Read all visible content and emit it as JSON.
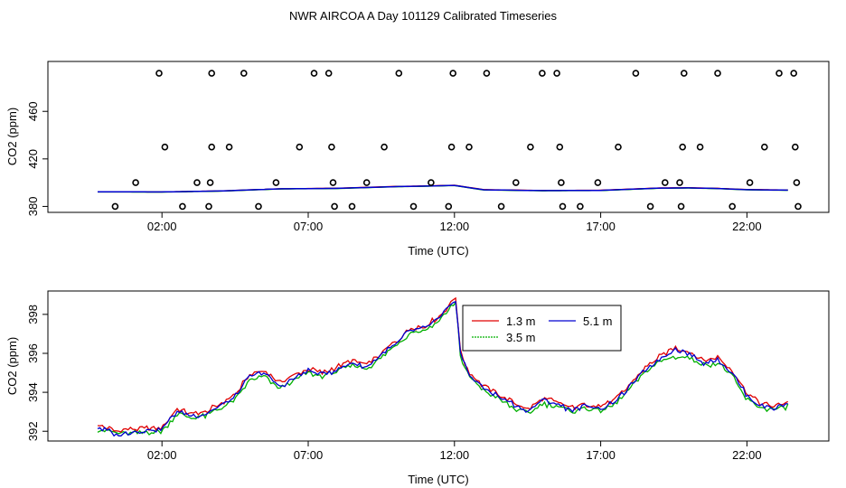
{
  "title": "NWR AIRCOA A  Day 101129  Calibrated Timeseries",
  "colors": {
    "r13": "#e00000",
    "r35": "#00b000",
    "r51": "#0000d0"
  },
  "chart_data": [
    {
      "type": "scatter+line",
      "panel": "top",
      "xlabel": "Time (UTC)",
      "ylabel": "CO2 (ppm)",
      "xlim": [
        -1.9,
        24.8
      ],
      "ylim": [
        375,
        502
      ],
      "x_ticks": [
        2,
        7,
        12,
        17,
        22
      ],
      "x_tick_labels": [
        "02:00",
        "07:00",
        "12:00",
        "17:00",
        "22:00"
      ],
      "y_ticks": [
        380,
        420,
        460
      ],
      "y_tick_labels": [
        "380",
        "420",
        "460"
      ],
      "points": [
        [
          0.4,
          380
        ],
        [
          1.1,
          400
        ],
        [
          2.1,
          430
        ],
        [
          1.9,
          492
        ],
        [
          2.7,
          380
        ],
        [
          3.2,
          400
        ],
        [
          3.6,
          380
        ],
        [
          3.65,
          400
        ],
        [
          3.7,
          430
        ],
        [
          3.7,
          492
        ],
        [
          4.3,
          430
        ],
        [
          4.8,
          492
        ],
        [
          5.3,
          380
        ],
        [
          5.9,
          400
        ],
        [
          6.7,
          430
        ],
        [
          7.2,
          492
        ],
        [
          7.7,
          492
        ],
        [
          7.8,
          430
        ],
        [
          7.85,
          400
        ],
        [
          7.9,
          380
        ],
        [
          8.5,
          380
        ],
        [
          9.0,
          400
        ],
        [
          9.6,
          430
        ],
        [
          10.1,
          492
        ],
        [
          10.6,
          380
        ],
        [
          11.2,
          400
        ],
        [
          11.8,
          380
        ],
        [
          11.9,
          430
        ],
        [
          11.95,
          492
        ],
        [
          12.5,
          430
        ],
        [
          13.1,
          492
        ],
        [
          13.6,
          380
        ],
        [
          14.1,
          400
        ],
        [
          14.6,
          430
        ],
        [
          15.0,
          492
        ],
        [
          15.5,
          492
        ],
        [
          15.6,
          430
        ],
        [
          15.65,
          400
        ],
        [
          15.7,
          380
        ],
        [
          16.3,
          380
        ],
        [
          16.9,
          400
        ],
        [
          17.6,
          430
        ],
        [
          18.2,
          492
        ],
        [
          18.7,
          380
        ],
        [
          19.2,
          400
        ],
        [
          19.7,
          400
        ],
        [
          19.75,
          380
        ],
        [
          19.8,
          430
        ],
        [
          19.85,
          492
        ],
        [
          20.4,
          430
        ],
        [
          21.0,
          492
        ],
        [
          21.5,
          380
        ],
        [
          22.1,
          400
        ],
        [
          22.6,
          430
        ],
        [
          23.1,
          492
        ],
        [
          23.6,
          492
        ],
        [
          23.65,
          430
        ],
        [
          23.7,
          400
        ],
        [
          23.75,
          380
        ]
      ],
      "series": [
        {
          "name": "1.3 m",
          "color_key": "r13",
          "x": [
            -0.2,
            2,
            4,
            6,
            8,
            10,
            11,
            12,
            13,
            15,
            17,
            19,
            20,
            21,
            22,
            23.4
          ],
          "values": [
            392.3,
            392.2,
            393.0,
            394.8,
            395.3,
            396.8,
            397.2,
            397.8,
            394.1,
            393.4,
            393.6,
            395.5,
            395.7,
            395.2,
            394.2,
            393.8
          ]
        },
        {
          "name": "3.5 m",
          "color_key": "r35",
          "x": [
            -0.2,
            2,
            4,
            6,
            8,
            10,
            11,
            12,
            13,
            15,
            17,
            19,
            20,
            21,
            22,
            23.4
          ],
          "values": [
            392.2,
            392.1,
            392.9,
            394.7,
            395.1,
            396.6,
            397.0,
            397.6,
            393.9,
            393.2,
            393.4,
            395.3,
            395.5,
            395.0,
            394.0,
            393.6
          ]
        },
        {
          "name": "5.1 m",
          "color_key": "r51",
          "x": [
            -0.2,
            2,
            4,
            6,
            8,
            10,
            11,
            12,
            13,
            15,
            17,
            19,
            20,
            21,
            22,
            23.4
          ],
          "values": [
            392.3,
            392.2,
            393.0,
            394.8,
            395.2,
            396.7,
            397.1,
            397.7,
            394.0,
            393.3,
            393.5,
            395.4,
            395.6,
            395.1,
            394.1,
            393.7
          ]
        }
      ]
    },
    {
      "type": "line",
      "panel": "bottom",
      "xlabel": "Time (UTC)",
      "ylabel": "CO2 (ppm)",
      "xlim": [
        -1.9,
        24.8
      ],
      "ylim": [
        391.5,
        399.2
      ],
      "x_ticks": [
        2,
        7,
        12,
        17,
        22
      ],
      "x_tick_labels": [
        "02:00",
        "07:00",
        "12:00",
        "17:00",
        "22:00"
      ],
      "y_ticks": [
        392,
        394,
        396,
        398
      ],
      "y_tick_labels": [
        "392",
        "394",
        "396",
        "398"
      ],
      "legend": {
        "placement": "top-center",
        "entries": [
          "1.3 m",
          "5.1 m",
          "3.5 m"
        ]
      },
      "knots": {
        "x": [
          -0.2,
          0.5,
          1.0,
          2.0,
          2.5,
          3.0,
          3.5,
          4.0,
          4.5,
          5.0,
          5.5,
          6.0,
          6.5,
          7.0,
          7.5,
          8.0,
          8.5,
          9.0,
          9.5,
          10.0,
          10.5,
          11.0,
          11.5,
          12.05,
          12.2,
          12.5,
          13.0,
          13.5,
          14.0,
          14.5,
          15.0,
          15.5,
          16.0,
          16.5,
          17.0,
          17.5,
          18.0,
          18.5,
          19.0,
          19.5,
          20.0,
          20.5,
          21.0,
          21.5,
          22.0,
          22.5,
          23.0,
          23.4
        ],
        "r13": [
          392.3,
          392.0,
          392.1,
          392.2,
          393.1,
          392.9,
          393.0,
          393.4,
          393.9,
          394.9,
          395.1,
          394.5,
          394.9,
          395.2,
          395.0,
          395.3,
          395.6,
          395.4,
          396.0,
          396.6,
          397.3,
          397.4,
          397.9,
          398.9,
          396.1,
          395.0,
          394.3,
          393.9,
          393.5,
          393.1,
          393.7,
          393.5,
          393.2,
          393.4,
          393.3,
          393.6,
          394.4,
          395.2,
          395.8,
          396.3,
          396.1,
          395.6,
          395.8,
          395.1,
          394.0,
          393.4,
          393.3,
          393.5
        ],
        "r35": [
          392.1,
          391.9,
          391.9,
          392.0,
          392.9,
          392.7,
          392.8,
          393.2,
          393.6,
          394.6,
          394.8,
          394.2,
          394.6,
          395.0,
          394.8,
          395.1,
          395.4,
          395.2,
          395.8,
          396.4,
          397.1,
          397.2,
          397.7,
          398.7,
          395.8,
          394.8,
          394.1,
          393.7,
          393.2,
          392.9,
          393.4,
          393.3,
          393.0,
          393.2,
          393.1,
          393.4,
          394.2,
          395.0,
          395.6,
          395.8,
          395.8,
          395.4,
          395.5,
          394.8,
          393.6,
          393.2,
          393.1,
          393.3
        ],
        "r51": [
          392.2,
          391.8,
          392.0,
          392.1,
          393.0,
          392.8,
          392.9,
          393.3,
          393.8,
          394.8,
          395.0,
          394.3,
          394.7,
          395.1,
          394.9,
          395.2,
          395.5,
          395.3,
          395.9,
          396.5,
          397.2,
          397.3,
          397.8,
          398.8,
          396.0,
          394.9,
          394.2,
          393.8,
          393.4,
          393.0,
          393.6,
          393.4,
          393.1,
          393.3,
          393.2,
          393.5,
          394.3,
          395.1,
          395.7,
          396.2,
          396.0,
          395.5,
          395.7,
          395.0,
          393.8,
          393.3,
          393.2,
          393.4
        ]
      }
    }
  ]
}
